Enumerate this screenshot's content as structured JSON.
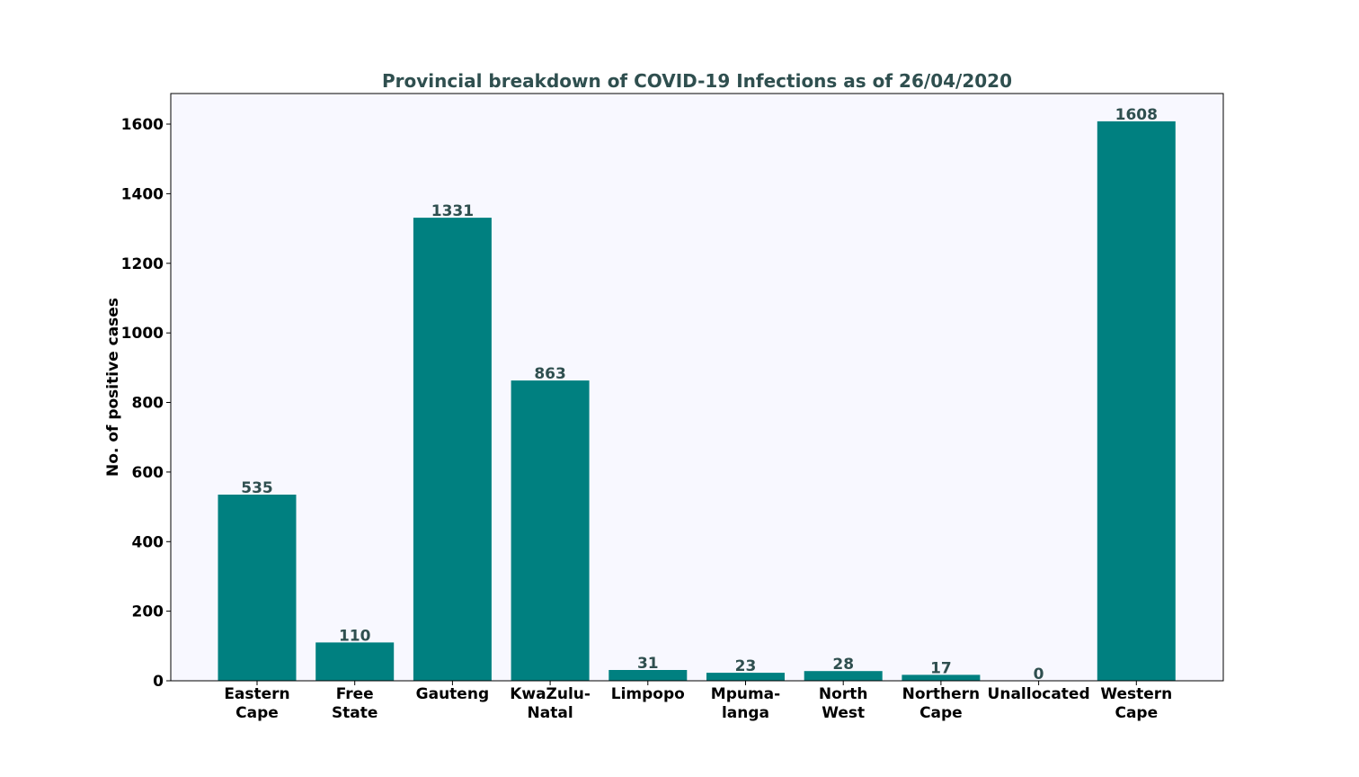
{
  "chart_data": {
    "type": "bar",
    "title": "Provincial breakdown of COVID-19 Infections as of 26/04/2020",
    "xlabel": "",
    "ylabel": "No. of positive cases",
    "categories": [
      "Eastern\nCape",
      "Free\nState",
      "Gauteng",
      "KwaZulu-\nNatal",
      "Limpopo",
      "Mpuma-\nlanga",
      "North\nWest",
      "Northern\nCape",
      "Unallocated",
      "Western\nCape"
    ],
    "values": [
      535,
      110,
      1331,
      863,
      31,
      23,
      28,
      17,
      0,
      1608
    ],
    "data_labels": [
      "535",
      "110",
      "1331",
      "863",
      "31",
      "23",
      "28",
      "17",
      "0",
      "1608"
    ],
    "ylim": [
      0,
      1688
    ],
    "yticks": [
      0,
      200,
      400,
      600,
      800,
      1000,
      1200,
      1400,
      1600
    ],
    "grid": false,
    "bar_color": "#008080",
    "plot_background": "#f8f8ff",
    "title_color": "#2f4f4f",
    "data_label_color": "#2f4f4f"
  }
}
